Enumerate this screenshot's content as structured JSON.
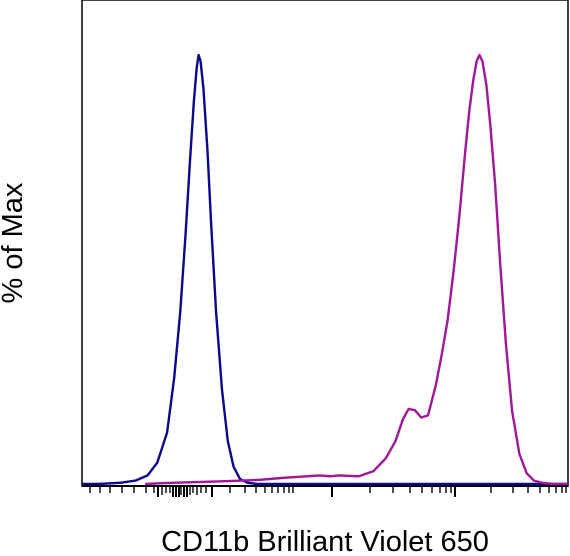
{
  "chart_data": {
    "type": "line",
    "xlabel": "CD11b Brilliant Violet 650",
    "ylabel": "% of Max",
    "x_scale": "log",
    "grid": false,
    "series": [
      {
        "color": "#0a0a8c",
        "points": [
          [
            0.0,
            0.0
          ],
          [
            0.02,
            0.0
          ],
          [
            0.03,
            0.0
          ],
          [
            0.05,
            0.001
          ],
          [
            0.08,
            0.003
          ],
          [
            0.11,
            0.008
          ],
          [
            0.135,
            0.02
          ],
          [
            0.155,
            0.05
          ],
          [
            0.175,
            0.12
          ],
          [
            0.19,
            0.25
          ],
          [
            0.202,
            0.4
          ],
          [
            0.213,
            0.58
          ],
          [
            0.222,
            0.75
          ],
          [
            0.23,
            0.89
          ],
          [
            0.236,
            0.97
          ],
          [
            0.24,
            1.0
          ],
          [
            0.244,
            0.985
          ],
          [
            0.25,
            0.92
          ],
          [
            0.258,
            0.78
          ],
          [
            0.266,
            0.6
          ],
          [
            0.276,
            0.4
          ],
          [
            0.288,
            0.22
          ],
          [
            0.3,
            0.1
          ],
          [
            0.312,
            0.04
          ],
          [
            0.325,
            0.012
          ],
          [
            0.34,
            0.003
          ],
          [
            0.36,
            0.0
          ],
          [
            0.5,
            0.0
          ],
          [
            1.0,
            0.0
          ]
        ]
      },
      {
        "color": "#a0179a",
        "points": [
          [
            0.13,
            0.0
          ],
          [
            0.17,
            0.002
          ],
          [
            0.22,
            0.004
          ],
          [
            0.28,
            0.006
          ],
          [
            0.33,
            0.008
          ],
          [
            0.37,
            0.01
          ],
          [
            0.41,
            0.014
          ],
          [
            0.45,
            0.017
          ],
          [
            0.49,
            0.02
          ],
          [
            0.51,
            0.018
          ],
          [
            0.53,
            0.02
          ],
          [
            0.57,
            0.018
          ],
          [
            0.6,
            0.03
          ],
          [
            0.625,
            0.06
          ],
          [
            0.645,
            0.1
          ],
          [
            0.66,
            0.15
          ],
          [
            0.672,
            0.175
          ],
          [
            0.685,
            0.172
          ],
          [
            0.698,
            0.155
          ],
          [
            0.712,
            0.16
          ],
          [
            0.728,
            0.23
          ],
          [
            0.74,
            0.3
          ],
          [
            0.752,
            0.38
          ],
          [
            0.765,
            0.5
          ],
          [
            0.777,
            0.63
          ],
          [
            0.788,
            0.77
          ],
          [
            0.797,
            0.87
          ],
          [
            0.805,
            0.94
          ],
          [
            0.812,
            0.985
          ],
          [
            0.818,
            1.0
          ],
          [
            0.824,
            0.985
          ],
          [
            0.832,
            0.93
          ],
          [
            0.84,
            0.84
          ],
          [
            0.85,
            0.7
          ],
          [
            0.86,
            0.52
          ],
          [
            0.872,
            0.33
          ],
          [
            0.885,
            0.17
          ],
          [
            0.9,
            0.07
          ],
          [
            0.915,
            0.025
          ],
          [
            0.93,
            0.008
          ],
          [
            0.95,
            0.002
          ],
          [
            0.97,
            0.0
          ],
          [
            1.0,
            0.0
          ]
        ]
      }
    ]
  }
}
